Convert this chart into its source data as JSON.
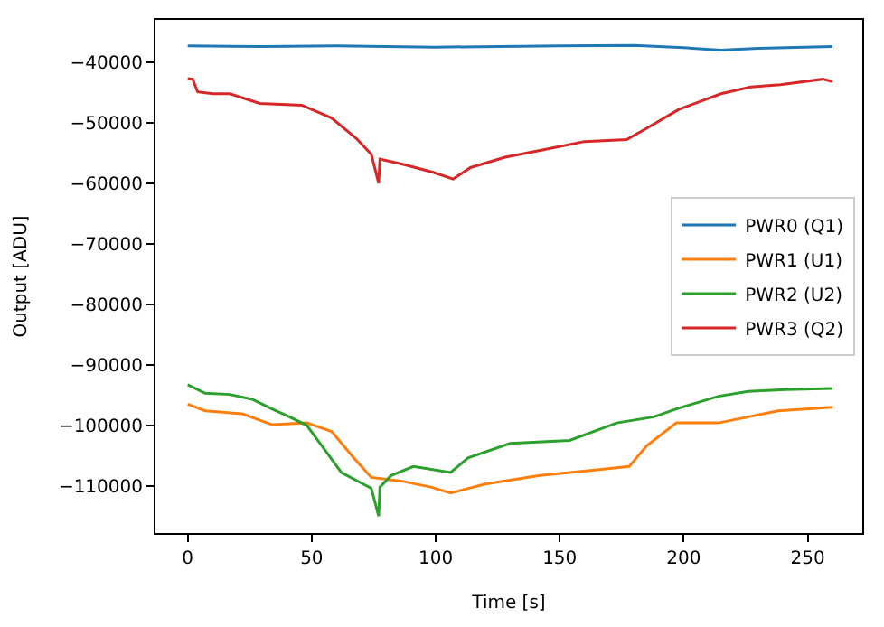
{
  "chart_data": {
    "type": "line",
    "xlabel": "Time [s]",
    "ylabel": "Output [ADU]",
    "xlim": [
      -13,
      272
    ],
    "xticks": [
      0,
      50,
      100,
      150,
      200,
      250
    ],
    "ylim": [
      -117800,
      -33000
    ],
    "yticks": [
      {
        "value": -40000,
        "label": "−40000"
      },
      {
        "value": -50000,
        "label": "−50000"
      },
      {
        "value": -60000,
        "label": "−60000"
      },
      {
        "value": -70000,
        "label": "−70000"
      },
      {
        "value": -80000,
        "label": "−80000"
      },
      {
        "value": -90000,
        "label": "−90000"
      },
      {
        "value": -100000,
        "label": "−100000"
      },
      {
        "value": -110000,
        "label": "−110000"
      }
    ],
    "legend": "right",
    "marker": "none",
    "line_style": "solid",
    "series": [
      {
        "name": "PWR0 (Q1)",
        "color": "#1f77b4",
        "x": [
          0,
          30,
          60,
          100,
          150,
          180,
          200,
          215,
          230,
          260
        ],
        "values": [
          -37300,
          -37400,
          -37300,
          -37500,
          -37300,
          -37200,
          -37600,
          -38000,
          -37700,
          -37400
        ]
      },
      {
        "name": "PWR1 (U1)",
        "color": "#ff7f0e",
        "x": [
          0,
          7,
          22,
          34,
          48,
          58,
          67,
          74,
          86,
          98,
          106,
          120,
          142,
          166,
          178,
          185,
          197,
          214,
          238,
          260
        ],
        "values": [
          -96500,
          -97600,
          -98100,
          -99900,
          -99600,
          -101000,
          -105400,
          -108600,
          -109200,
          -110200,
          -111200,
          -109700,
          -108300,
          -107300,
          -106800,
          -103400,
          -99600,
          -99600,
          -97600,
          -97000
        ]
      },
      {
        "name": "PWR2 (U2)",
        "color": "#2ca02c",
        "x": [
          0,
          7,
          17,
          26,
          34,
          41,
          48,
          55,
          62,
          74,
          77,
          77.5,
          82,
          91,
          106,
          113,
          130,
          154,
          173,
          188,
          197,
          214,
          226,
          241,
          260
        ],
        "values": [
          -93300,
          -94700,
          -94900,
          -95700,
          -97300,
          -98600,
          -100000,
          -103900,
          -107800,
          -110400,
          -115000,
          -110200,
          -108300,
          -106800,
          -107800,
          -105400,
          -103000,
          -102500,
          -99600,
          -98600,
          -97300,
          -95200,
          -94400,
          -94100,
          -93900
        ]
      },
      {
        "name": "PWR3 (Q2)",
        "color": "#d62728",
        "x": [
          0,
          2,
          4,
          10,
          17,
          29,
          46,
          58,
          68,
          74,
          77,
          77.5,
          87,
          99,
          107,
          114,
          128,
          143,
          160,
          177,
          186,
          198,
          215,
          227,
          239,
          256,
          260
        ],
        "values": [
          -42700,
          -42800,
          -44900,
          -45200,
          -45200,
          -46800,
          -47100,
          -49200,
          -52600,
          -55200,
          -60000,
          -56000,
          -56900,
          -58200,
          -59300,
          -57400,
          -55700,
          -54500,
          -53100,
          -52800,
          -50700,
          -47800,
          -45200,
          -44100,
          -43700,
          -42800,
          -43200
        ]
      }
    ]
  }
}
